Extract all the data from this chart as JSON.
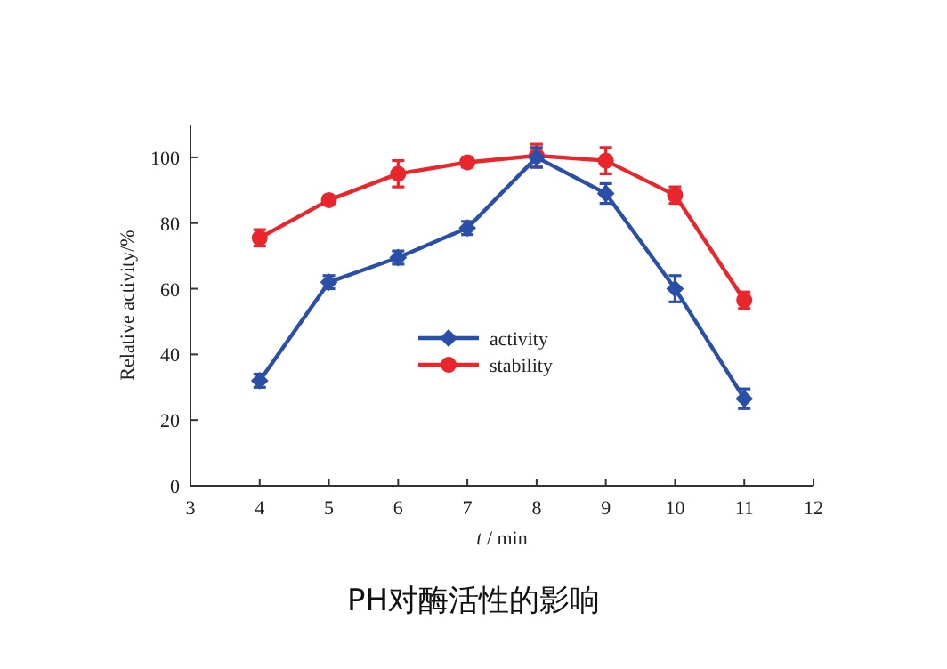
{
  "chart_data": {
    "type": "line",
    "title": "PH对酶活性的影响",
    "xlabel": "*t* / min",
    "ylabel": "Relative activity/%",
    "x": [
      4,
      5,
      6,
      7,
      8,
      9,
      10,
      11
    ],
    "xlim": [
      3,
      12
    ],
    "xticks": [
      3,
      4,
      5,
      6,
      7,
      8,
      9,
      10,
      11,
      12
    ],
    "ylim": [
      0,
      110
    ],
    "yticks": [
      0,
      20,
      40,
      60,
      80,
      100
    ],
    "legend": "center",
    "grid": false,
    "series": [
      {
        "name": "activity",
        "color": "#2a4fa8",
        "marker": "diamond",
        "values": [
          32,
          62,
          69.5,
          78.5,
          100,
          89,
          60,
          26.5
        ],
        "errors": [
          2,
          2,
          2,
          2,
          3,
          3,
          4,
          3
        ]
      },
      {
        "name": "stability",
        "color": "#e8262c",
        "marker": "circle",
        "values": [
          75.5,
          87,
          95,
          98.5,
          100.5,
          99,
          88.5,
          56.5
        ],
        "errors": [
          2.5,
          1,
          4,
          1.5,
          3.5,
          4,
          2.5,
          2.5
        ]
      }
    ]
  }
}
